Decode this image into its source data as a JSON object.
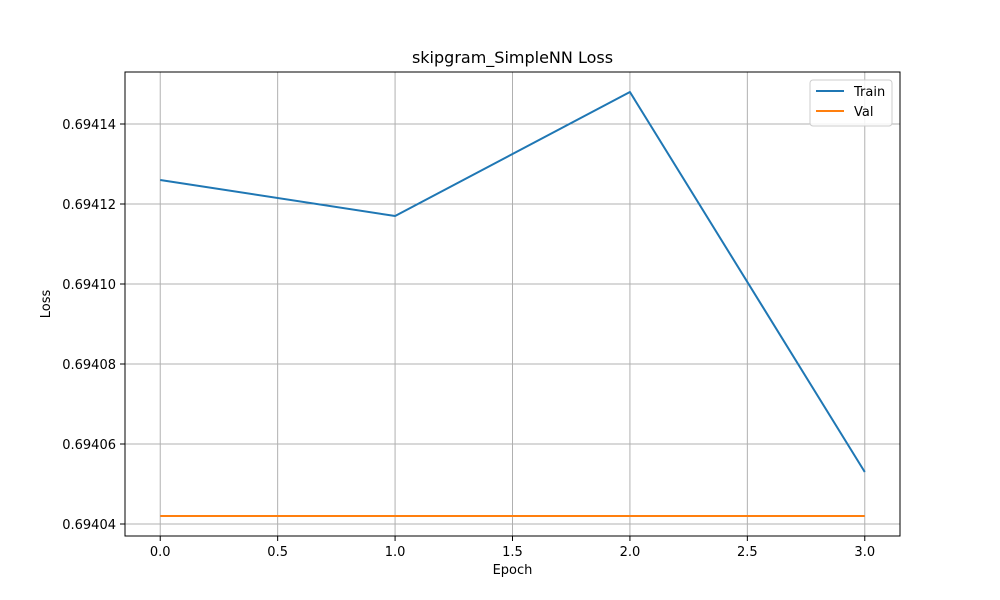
{
  "chart_data": {
    "type": "line",
    "title": "skipgram_SimpleNN Loss",
    "xlabel": "Epoch",
    "ylabel": "Loss",
    "x": [
      0,
      1,
      2,
      3
    ],
    "xlim": [
      -0.15,
      3.15
    ],
    "ylim": [
      0.694037,
      0.694153
    ],
    "xticks": [
      0.0,
      0.5,
      1.0,
      1.5,
      2.0,
      2.5,
      3.0
    ],
    "xtick_labels": [
      "0.0",
      "0.5",
      "1.0",
      "1.5",
      "2.0",
      "2.5",
      "3.0"
    ],
    "yticks": [
      0.69404,
      0.69406,
      0.69408,
      0.6941,
      0.69412,
      0.69414
    ],
    "ytick_labels": [
      "0.69404",
      "0.69406",
      "0.69408",
      "0.69410",
      "0.69412",
      "0.69414"
    ],
    "grid": true,
    "legend_position": "top-right",
    "series": [
      {
        "name": "Train",
        "color": "#1f77b4",
        "values": [
          0.694126,
          0.694117,
          0.694148,
          0.694053
        ]
      },
      {
        "name": "Val",
        "color": "#ff7f0e",
        "values": [
          0.694042,
          0.694042,
          0.694042,
          0.694042
        ]
      }
    ]
  }
}
